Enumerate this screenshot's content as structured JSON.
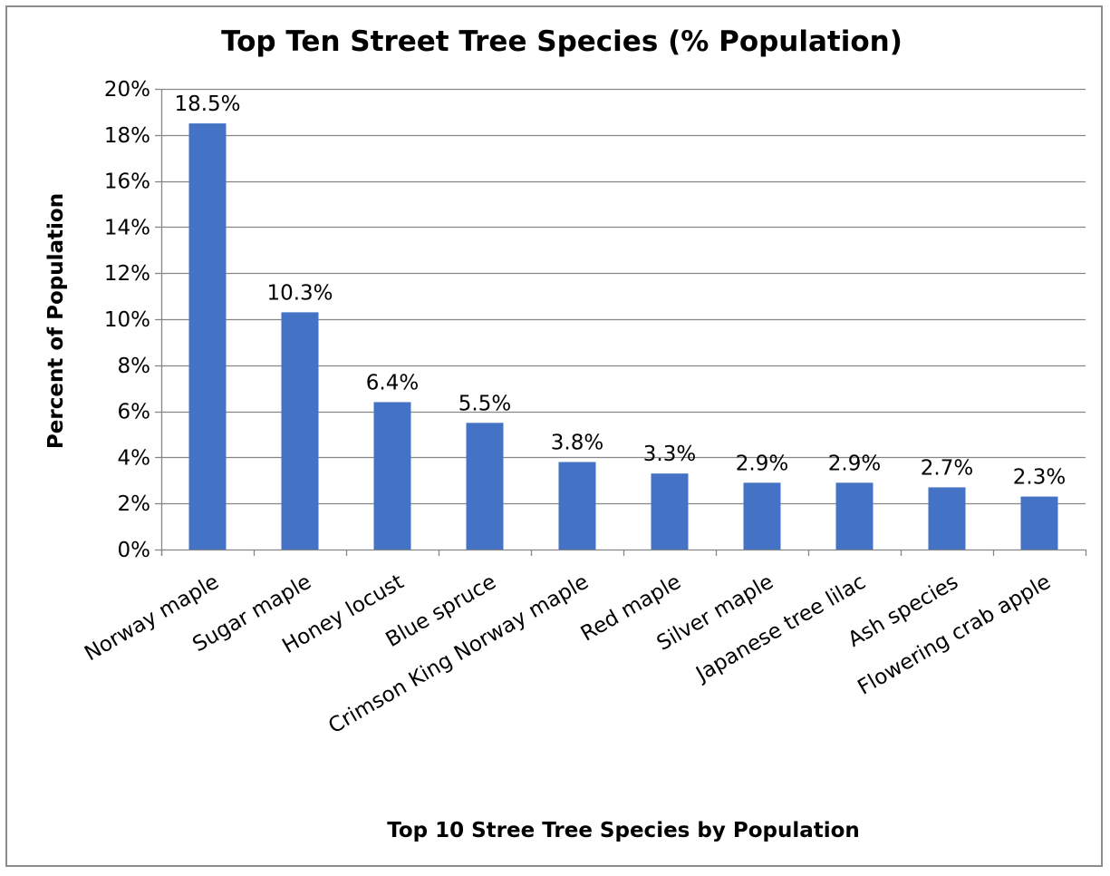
{
  "chart_data": {
    "type": "bar",
    "title": "Top Ten Street Tree Species (% Population)",
    "xlabel": "Top 10 Stree Tree Species by Population",
    "ylabel": "Percent of Population",
    "categories": [
      "Norway maple",
      "Sugar maple",
      "Honey locust",
      "Blue spruce",
      "Crimson King Norway maple",
      "Red maple",
      "Silver maple",
      "Japanese tree lilac",
      "Ash species",
      "Flowering crab apple"
    ],
    "values": [
      18.5,
      10.3,
      6.4,
      5.5,
      3.8,
      3.3,
      2.9,
      2.9,
      2.7,
      2.3
    ],
    "data_labels": [
      "18.5%",
      "10.3%",
      "6.4%",
      "5.5%",
      "3.8%",
      "3.3%",
      "2.9%",
      "2.9%",
      "2.7%",
      "2.3%"
    ],
    "ylim": [
      0,
      20
    ],
    "yticks": [
      0,
      2,
      4,
      6,
      8,
      10,
      12,
      14,
      16,
      18,
      20
    ],
    "ytick_labels": [
      "0%",
      "2%",
      "4%",
      "6%",
      "8%",
      "10%",
      "12%",
      "14%",
      "16%",
      "18%",
      "20%"
    ],
    "grid": true,
    "legend": "none",
    "bar_color": "#4472c4",
    "gridline_color": "#868686"
  }
}
